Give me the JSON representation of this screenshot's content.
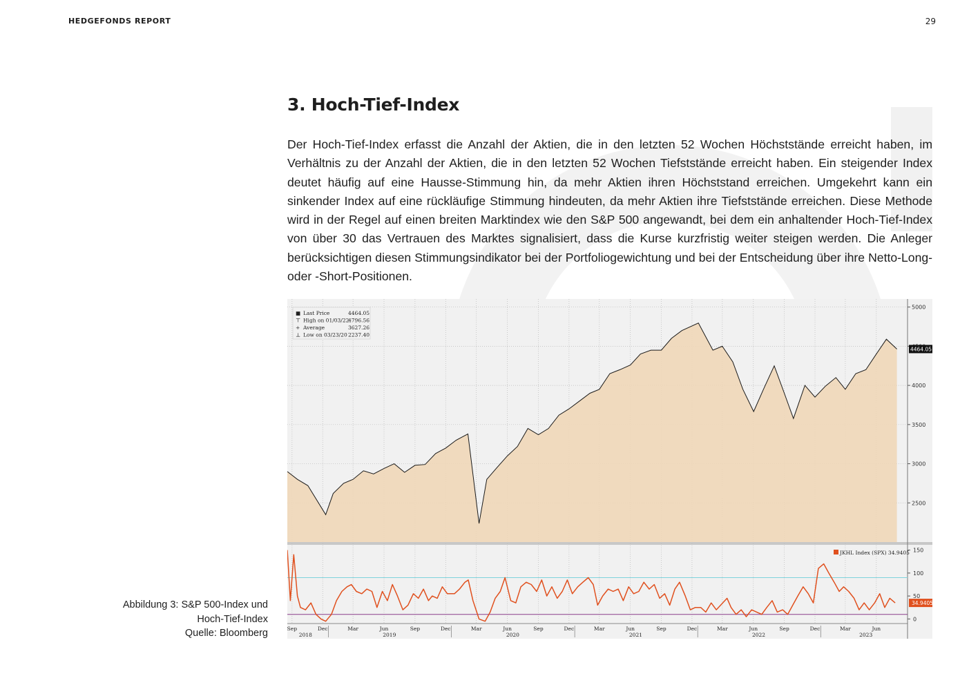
{
  "header": {
    "report_title": "HEDGEFONDS REPORT",
    "page_number": "29"
  },
  "section": {
    "title": "3. Hoch-Tief-Index",
    "paragraph": "Der Hoch-Tief-Index erfasst die Anzahl der Aktien, die in den letzten 52 Wochen Höchststände erreicht haben, im Verhältnis zu der Anzahl der Aktien, die in den letzten 52 Wochen Tiefststände erreicht haben. Ein steigender Index deutet häufig auf eine Hausse-Stimmung hin, da mehr Aktien ihren Höchststand erreichen. Umgekehrt kann ein sinkender Index auf eine rückläufige Stimmung hindeuten, da mehr Aktien ihre Tiefststände erreichen. Diese Methode wird in der Regel auf einen breiten Marktindex wie den S&P 500 angewandt, bei dem ein anhaltender Hoch-Tief-Index von über 30 das Vertrauen des Marktes signalisiert, dass die Kurse kurzfristig weiter steigen werden. Die Anleger berücksichtigen diesen Stimmungsindikator bei der Portfoliogewichtung und bei der Entscheidung über ihre Netto-Long- oder -Short-Positionen."
  },
  "caption": {
    "line1": "Abbildung 3: S&P 500-Index und",
    "line2": "Hoch-Tief-Index",
    "line3": "Quelle: Bloomberg"
  },
  "chart_data": [
    {
      "type": "area",
      "ylim": [
        2000,
        5050
      ],
      "yticks": [
        2500,
        3000,
        3500,
        4000,
        4500,
        5000
      ],
      "grid": true,
      "legend": {
        "placement": "top-left",
        "rows": [
          {
            "marker": "■",
            "label": "Last Price",
            "value": "4464.05"
          },
          {
            "marker": "⊤",
            "label": "High on 01/03/22",
            "value": "4796.56"
          },
          {
            "marker": "+",
            "label": "Average",
            "value": "3627.26"
          },
          {
            "marker": "⊥",
            "label": "Low on 03/23/20",
            "value": "2237.40"
          }
        ]
      },
      "last_value_badge": "4464.05",
      "colors": {
        "line": "#1a1a1a",
        "fill": "#f0d7b8",
        "badge": "#111111"
      },
      "x": [
        "2018-09-01",
        "2018-10-01",
        "2018-11-01",
        "2018-12-24",
        "2019-01-15",
        "2019-02-15",
        "2019-03-15",
        "2019-04-15",
        "2019-05-15",
        "2019-06-15",
        "2019-07-15",
        "2019-08-15",
        "2019-09-15",
        "2019-10-15",
        "2019-11-15",
        "2019-12-15",
        "2020-01-15",
        "2020-02-19",
        "2020-03-23",
        "2020-04-15",
        "2020-05-15",
        "2020-06-15",
        "2020-07-15",
        "2020-08-15",
        "2020-09-15",
        "2020-10-15",
        "2020-11-15",
        "2020-12-15",
        "2021-01-15",
        "2021-02-15",
        "2021-03-15",
        "2021-04-15",
        "2021-05-15",
        "2021-06-15",
        "2021-07-15",
        "2021-08-15",
        "2021-09-15",
        "2021-10-15",
        "2021-11-15",
        "2022-01-03",
        "2022-02-15",
        "2022-03-15",
        "2022-04-15",
        "2022-05-15",
        "2022-06-16",
        "2022-07-15",
        "2022-08-16",
        "2022-09-15",
        "2022-10-12",
        "2022-11-15",
        "2022-12-15",
        "2023-01-15",
        "2023-02-15",
        "2023-03-15",
        "2023-04-15",
        "2023-05-15",
        "2023-06-15",
        "2023-07-15",
        "2023-08-15"
      ],
      "values": [
        2900,
        2800,
        2720,
        2350,
        2620,
        2750,
        2800,
        2910,
        2870,
        2940,
        3000,
        2890,
        2980,
        2990,
        3130,
        3200,
        3300,
        3380,
        2237,
        2800,
        2950,
        3100,
        3220,
        3450,
        3370,
        3450,
        3620,
        3700,
        3800,
        3900,
        3950,
        4150,
        4200,
        4260,
        4400,
        4450,
        4450,
        4600,
        4700,
        4796,
        4450,
        4500,
        4300,
        3950,
        3666,
        3950,
        4250,
        3900,
        3577,
        4000,
        3850,
        3990,
        4100,
        3950,
        4150,
        4200,
        4400,
        4590,
        4464
      ]
    },
    {
      "type": "line",
      "series": [
        {
          "name": "JKHL Index (SPX)"
        }
      ],
      "legend_label": "JKHL Index (SPX) 34.9405",
      "ylim": [
        -10,
        160
      ],
      "yticks": [
        0,
        50,
        100,
        150
      ],
      "reference_lines": [
        90,
        10
      ],
      "last_value_badge": "34.9405",
      "x_labels": [
        {
          "m": "Sep",
          "d": "2018-09-15"
        },
        {
          "m": "Dec",
          "d": "2018-12-15"
        },
        {
          "m": "Mar",
          "d": "2019-03-15"
        },
        {
          "m": "Jun",
          "d": "2019-06-15"
        },
        {
          "m": "Sep",
          "d": "2019-09-15"
        },
        {
          "m": "Dec",
          "d": "2019-12-15"
        },
        {
          "m": "Mar",
          "d": "2020-03-15"
        },
        {
          "m": "Jun",
          "d": "2020-06-15"
        },
        {
          "m": "Sep",
          "d": "2020-09-15"
        },
        {
          "m": "Dec",
          "d": "2020-12-15"
        },
        {
          "m": "Mar",
          "d": "2021-03-15"
        },
        {
          "m": "Jun",
          "d": "2021-06-15"
        },
        {
          "m": "Sep",
          "d": "2021-09-15"
        },
        {
          "m": "Dec",
          "d": "2021-12-15"
        },
        {
          "m": "Mar",
          "d": "2022-03-15"
        },
        {
          "m": "Jun",
          "d": "2022-06-15"
        },
        {
          "m": "Sep",
          "d": "2022-09-15"
        },
        {
          "m": "Dec",
          "d": "2022-12-15"
        },
        {
          "m": "Mar",
          "d": "2023-03-15"
        },
        {
          "m": "Jun",
          "d": "2023-06-15"
        }
      ],
      "year_labels": [
        {
          "y": "2018",
          "d": "2018-10-25"
        },
        {
          "y": "2019",
          "d": "2019-07-01"
        },
        {
          "y": "2020",
          "d": "2020-07-01"
        },
        {
          "y": "2021",
          "d": "2021-07-01"
        },
        {
          "y": "2022",
          "d": "2022-07-01"
        },
        {
          "y": "2023",
          "d": "2023-05-15"
        }
      ],
      "colors": {
        "line": "#e0501e",
        "upper_ref": "#7fd3dc",
        "lower_ref": "#8a3d8a",
        "badge": "#e0501e"
      },
      "x": [
        "2018-09-01",
        "2018-09-10",
        "2018-09-20",
        "2018-10-01",
        "2018-10-10",
        "2018-10-25",
        "2018-11-10",
        "2018-11-25",
        "2018-12-10",
        "2018-12-24",
        "2019-01-10",
        "2019-01-25",
        "2019-02-10",
        "2019-02-25",
        "2019-03-10",
        "2019-03-25",
        "2019-04-10",
        "2019-04-25",
        "2019-05-10",
        "2019-05-25",
        "2019-06-10",
        "2019-06-25",
        "2019-07-10",
        "2019-07-25",
        "2019-08-10",
        "2019-08-25",
        "2019-09-10",
        "2019-09-25",
        "2019-10-10",
        "2019-10-25",
        "2019-11-05",
        "2019-11-20",
        "2019-12-05",
        "2019-12-20",
        "2020-01-10",
        "2020-01-25",
        "2020-02-10",
        "2020-02-20",
        "2020-03-05",
        "2020-03-23",
        "2020-04-10",
        "2020-04-25",
        "2020-05-10",
        "2020-05-25",
        "2020-06-08",
        "2020-06-25",
        "2020-07-10",
        "2020-07-25",
        "2020-08-10",
        "2020-08-25",
        "2020-09-10",
        "2020-09-25",
        "2020-10-10",
        "2020-10-25",
        "2020-11-10",
        "2020-11-25",
        "2020-12-10",
        "2020-12-25",
        "2021-01-10",
        "2021-01-25",
        "2021-02-10",
        "2021-02-25",
        "2021-03-10",
        "2021-03-25",
        "2021-04-10",
        "2021-04-25",
        "2021-05-10",
        "2021-05-25",
        "2021-06-10",
        "2021-06-25",
        "2021-07-10",
        "2021-07-25",
        "2021-08-10",
        "2021-08-25",
        "2021-09-10",
        "2021-09-25",
        "2021-10-10",
        "2021-10-25",
        "2021-11-08",
        "2021-11-25",
        "2021-12-10",
        "2021-12-25",
        "2022-01-10",
        "2022-01-25",
        "2022-02-10",
        "2022-02-25",
        "2022-03-10",
        "2022-03-29",
        "2022-04-10",
        "2022-04-25",
        "2022-05-10",
        "2022-05-25",
        "2022-06-10",
        "2022-06-25",
        "2022-07-10",
        "2022-07-25",
        "2022-08-10",
        "2022-08-25",
        "2022-09-10",
        "2022-09-25",
        "2022-10-10",
        "2022-10-25",
        "2022-11-10",
        "2022-11-25",
        "2022-12-10",
        "2022-12-25",
        "2023-01-10",
        "2023-01-25",
        "2023-02-10",
        "2023-02-25",
        "2023-03-10",
        "2023-03-25",
        "2023-04-10",
        "2023-04-25",
        "2023-05-10",
        "2023-05-25",
        "2023-06-10",
        "2023-06-25",
        "2023-07-10",
        "2023-07-25",
        "2023-08-10"
      ],
      "values": [
        150,
        40,
        140,
        50,
        25,
        20,
        35,
        10,
        0,
        -5,
        10,
        40,
        60,
        70,
        75,
        60,
        55,
        65,
        60,
        25,
        60,
        40,
        75,
        50,
        20,
        30,
        55,
        45,
        65,
        40,
        50,
        45,
        70,
        55,
        55,
        65,
        80,
        85,
        40,
        0,
        -5,
        15,
        45,
        60,
        90,
        40,
        35,
        70,
        80,
        75,
        60,
        85,
        50,
        70,
        45,
        60,
        85,
        55,
        70,
        80,
        90,
        75,
        30,
        50,
        65,
        60,
        65,
        40,
        70,
        55,
        60,
        80,
        65,
        75,
        45,
        55,
        30,
        65,
        80,
        50,
        20,
        25,
        25,
        15,
        35,
        20,
        30,
        45,
        25,
        10,
        20,
        5,
        20,
        15,
        10,
        25,
        40,
        15,
        20,
        10,
        30,
        50,
        70,
        55,
        35,
        110,
        120,
        100,
        80,
        60,
        70,
        60,
        45,
        20,
        35,
        20,
        35,
        55,
        25,
        45,
        35
      ]
    }
  ]
}
